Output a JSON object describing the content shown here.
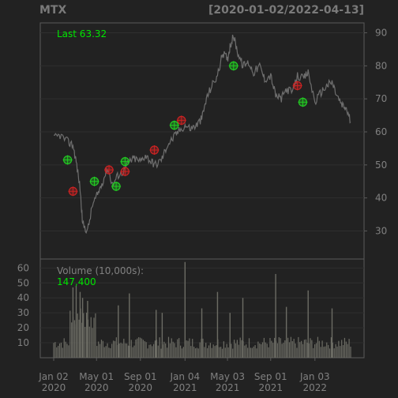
{
  "header": {
    "symbol": "MTX",
    "range": "[2020-01-02/2022-04-13]"
  },
  "colors": {
    "background": "#222222",
    "panel_border": "#5a5a5a",
    "grid": "#2f2f2f",
    "price": "#6e6e6e",
    "axis_text": "#808080",
    "highlight": "#00e600",
    "buy": "#22cc22",
    "sell": "#cc2222",
    "volume": "#6c6c64"
  },
  "chart_data": [
    {
      "type": "line",
      "title": "",
      "last_label": "Last 63.32",
      "x": [
        "2020-01-02",
        "2020-01-20",
        "2020-02-10",
        "2020-02-25",
        "2020-03-05",
        "2020-03-16",
        "2020-03-23",
        "2020-04-06",
        "2020-04-20",
        "2020-05-04",
        "2020-05-18",
        "2020-06-01",
        "2020-06-15",
        "2020-07-01",
        "2020-07-15",
        "2020-08-01",
        "2020-08-15",
        "2020-09-01",
        "2020-09-15",
        "2020-10-01",
        "2020-10-15",
        "2020-11-01",
        "2020-11-15",
        "2020-12-01",
        "2020-12-15",
        "2021-01-04",
        "2021-01-20",
        "2021-02-05",
        "2021-02-20",
        "2021-03-05",
        "2021-03-20",
        "2021-04-05",
        "2021-04-20",
        "2021-05-03",
        "2021-05-10",
        "2021-05-20",
        "2021-06-01",
        "2021-06-15",
        "2021-07-01",
        "2021-07-15",
        "2021-08-01",
        "2021-08-15",
        "2021-09-01",
        "2021-09-15",
        "2021-10-01",
        "2021-10-15",
        "2021-11-01",
        "2021-11-15",
        "2021-12-01",
        "2021-12-15",
        "2022-01-03",
        "2022-01-20",
        "2022-02-05",
        "2022-02-20",
        "2022-03-05",
        "2022-03-20",
        "2022-04-01",
        "2022-04-13"
      ],
      "y": [
        58,
        59,
        57,
        56,
        51,
        43,
        32,
        30,
        38,
        41,
        45,
        49,
        44,
        47,
        48,
        51,
        52,
        51,
        53,
        51,
        50,
        52,
        56,
        58,
        60,
        62,
        61,
        62,
        64,
        70,
        74,
        77,
        84,
        82,
        86,
        89,
        84,
        80,
        81,
        78,
        80,
        76,
        77,
        71,
        70,
        73,
        72,
        77,
        76,
        78,
        69,
        72,
        74,
        75,
        71,
        68,
        67,
        63
      ],
      "xticks": [
        {
          "date": "2020-01-02",
          "label": "Jan 02",
          "year": "2020"
        },
        {
          "date": "2020-05-01",
          "label": "May 01",
          "year": "2020"
        },
        {
          "date": "2020-09-01",
          "label": "Sep 01",
          "year": "2020"
        },
        {
          "date": "2021-01-04",
          "label": "Jan 04",
          "year": "2021"
        },
        {
          "date": "2021-05-03",
          "label": "May 03",
          "year": "2021"
        },
        {
          "date": "2021-09-01",
          "label": "Sep 01",
          "year": "2021"
        },
        {
          "date": "2022-01-03",
          "label": "Jan 03",
          "year": "2022"
        }
      ],
      "yticks": [
        30,
        40,
        50,
        60,
        70,
        80,
        90
      ],
      "ylim": [
        21.5,
        93
      ],
      "grid": true,
      "axis_side": "right",
      "buy_signals": [
        {
          "x": "2020-02-10",
          "y": 51.5
        },
        {
          "x": "2020-04-25",
          "y": 45
        },
        {
          "x": "2020-06-25",
          "y": 43.5
        },
        {
          "x": "2020-07-20",
          "y": 51
        },
        {
          "x": "2020-12-05",
          "y": 62
        },
        {
          "x": "2021-05-20",
          "y": 80
        },
        {
          "x": "2021-11-30",
          "y": 69
        }
      ],
      "sell_signals": [
        {
          "x": "2020-02-25",
          "y": 42
        },
        {
          "x": "2020-06-05",
          "y": 48.5
        },
        {
          "x": "2020-07-20",
          "y": 48
        },
        {
          "x": "2020-10-10",
          "y": 54.5
        },
        {
          "x": "2020-12-25",
          "y": 63.5
        },
        {
          "x": "2021-11-15",
          "y": 74
        }
      ]
    },
    {
      "type": "bar",
      "title": "Volume (10,000s):",
      "last_label": "147,400",
      "yticks": [
        10,
        20,
        30,
        40,
        50,
        60
      ],
      "ylim": [
        0,
        66
      ],
      "grid": true,
      "axis_side": "left",
      "spikes": [
        {
          "x": "2020-02-25",
          "v": 47
        },
        {
          "x": "2020-03-05",
          "v": 48
        },
        {
          "x": "2020-03-16",
          "v": 44
        },
        {
          "x": "2020-03-23",
          "v": 40
        },
        {
          "x": "2020-04-06",
          "v": 38
        },
        {
          "x": "2020-07-01",
          "v": 35
        },
        {
          "x": "2020-08-01",
          "v": 43
        },
        {
          "x": "2020-10-15",
          "v": 32
        },
        {
          "x": "2020-11-01",
          "v": 30
        },
        {
          "x": "2021-01-04",
          "v": 64
        },
        {
          "x": "2021-02-20",
          "v": 33
        },
        {
          "x": "2021-04-05",
          "v": 44
        },
        {
          "x": "2021-05-10",
          "v": 30
        },
        {
          "x": "2021-06-15",
          "v": 40
        },
        {
          "x": "2021-09-15",
          "v": 56
        },
        {
          "x": "2021-10-15",
          "v": 34
        },
        {
          "x": "2021-12-15",
          "v": 45
        },
        {
          "x": "2022-02-20",
          "v": 33
        }
      ]
    }
  ]
}
